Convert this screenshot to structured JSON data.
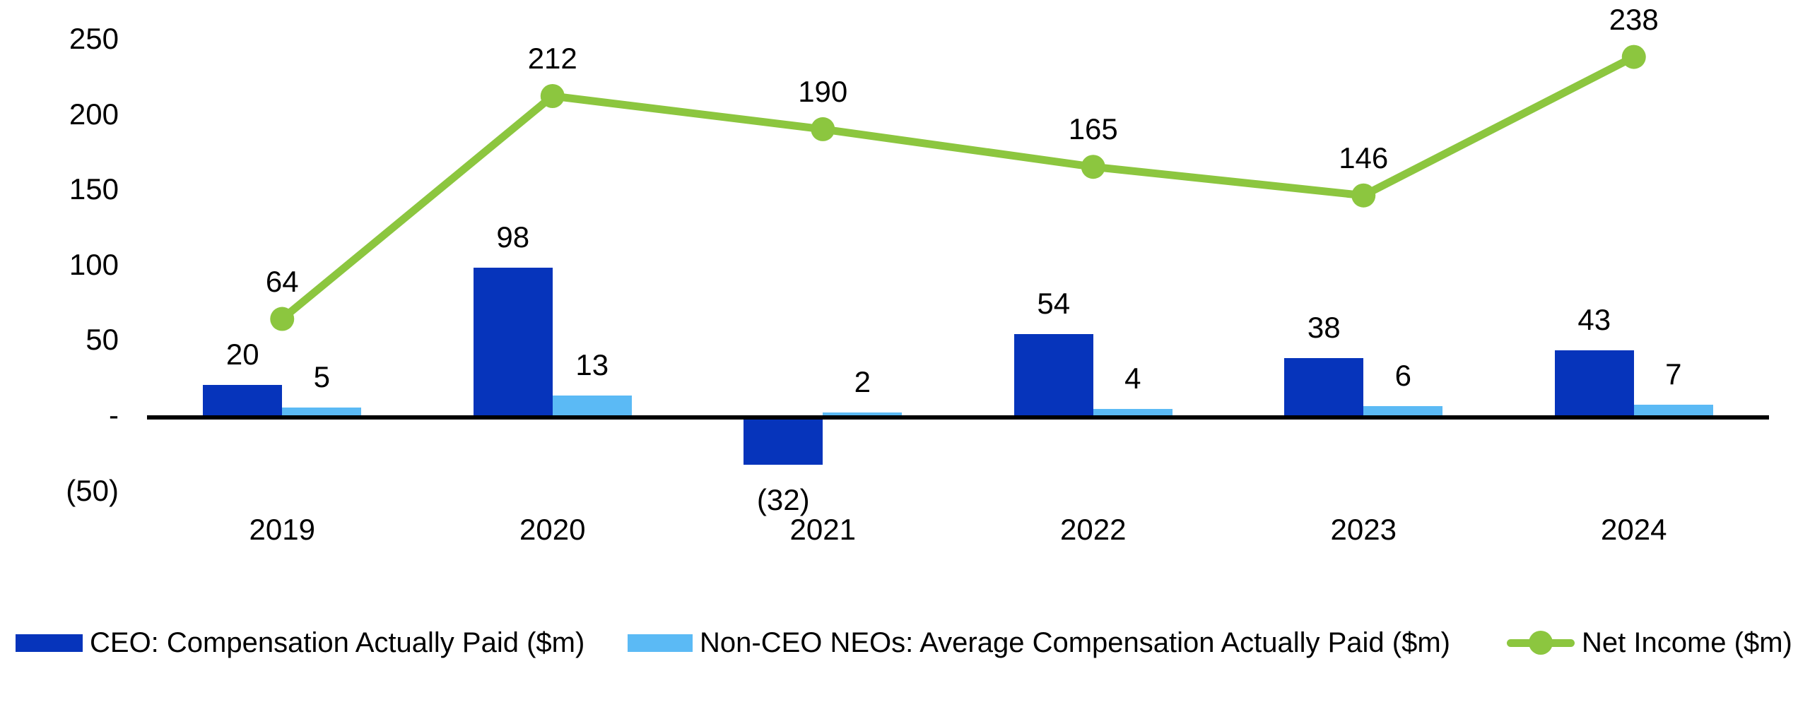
{
  "chart_data": {
    "type": "combo",
    "title": "",
    "categories": [
      "2019",
      "2020",
      "2021",
      "2022",
      "2023",
      "2024"
    ],
    "series": [
      {
        "name": "CEO: Compensation Actually Paid ($m)",
        "kind": "bar",
        "color": "#0634bb",
        "values": [
          20,
          98,
          -32,
          54,
          38,
          43
        ],
        "labels": [
          "20",
          "98",
          "(32)",
          "54",
          "38",
          "43"
        ]
      },
      {
        "name": "Non-CEO NEOs: Average Compensation Actually Paid ($m)",
        "kind": "bar",
        "color": "#5bbaf5",
        "values": [
          5,
          13,
          2,
          4,
          6,
          7
        ],
        "labels": [
          "5",
          "13",
          "2",
          "4",
          "6",
          "7"
        ]
      },
      {
        "name": "Net Income ($m)",
        "kind": "line",
        "color": "#8cc63f",
        "values": [
          64,
          212,
          190,
          165,
          146,
          238
        ],
        "labels": [
          "64",
          "212",
          "190",
          "165",
          "146",
          "238"
        ]
      }
    ],
    "y_axis": {
      "range": [
        -50,
        250
      ],
      "tick_interval": 50,
      "ticks": [
        {
          "label": "250",
          "value": 250
        },
        {
          "label": "200",
          "value": 200
        },
        {
          "label": "150",
          "value": 150
        },
        {
          "label": "100",
          "value": 100
        },
        {
          "label": "50",
          "value": 50
        },
        {
          "label": "-",
          "value": 0
        },
        {
          "label": "(50)",
          "value": -50
        }
      ]
    },
    "grid": false,
    "legend_position": "bottom"
  },
  "colors": {
    "ceo_bar": "#0634bb",
    "non_ceo_bar": "#5bbaf5",
    "net_income_line": "#8cc63f",
    "axis": "#000000",
    "text": "#000000",
    "background": "#ffffff"
  }
}
